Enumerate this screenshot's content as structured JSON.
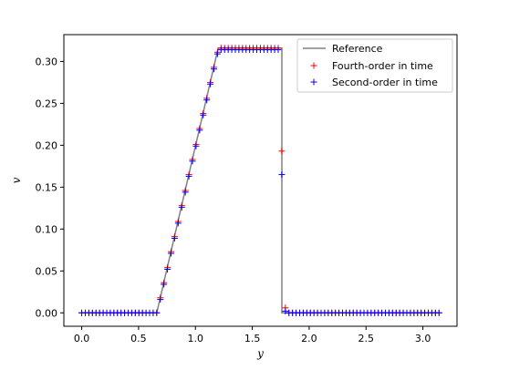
{
  "chart_data": {
    "type": "line",
    "xlabel": "y",
    "ylabel": "v",
    "xlim": [
      -0.157,
      3.3
    ],
    "ylim": [
      -0.016,
      0.332
    ],
    "x_ticks": [
      0.0,
      0.5,
      1.0,
      1.5,
      2.0,
      2.5,
      3.0
    ],
    "x_tick_labels": [
      "0.0",
      "0.5",
      "1.0",
      "1.5",
      "2.0",
      "2.5",
      "3.0"
    ],
    "y_ticks": [
      0.0,
      0.05,
      0.1,
      0.15,
      0.2,
      0.25,
      0.3
    ],
    "y_tick_labels": [
      "0.00",
      "0.05",
      "0.10",
      "0.15",
      "0.20",
      "0.25",
      "0.30"
    ],
    "legend_position": "top-right",
    "colors": {
      "reference": "#808080",
      "fourth": "#ff0000",
      "second": "#0000ff"
    },
    "series": [
      {
        "name": "Reference",
        "style": "line",
        "x": [
          0.0,
          0.66,
          1.2,
          1.76,
          1.76,
          3.14
        ],
        "y": [
          0.0,
          0.0,
          0.316,
          0.316,
          0.0,
          0.0
        ]
      },
      {
        "name": "Fourth-order in time",
        "style": "plus",
        "x": [
          0.0,
          0.0314,
          0.0628,
          0.0942,
          0.1257,
          0.1571,
          0.1885,
          0.2199,
          0.2513,
          0.2827,
          0.3142,
          0.3456,
          0.377,
          0.4084,
          0.4398,
          0.4712,
          0.5027,
          0.5341,
          0.5655,
          0.5969,
          0.6283,
          0.6597,
          0.6912,
          0.7226,
          0.754,
          0.7854,
          0.8168,
          0.8482,
          0.8796,
          0.9111,
          0.9425,
          0.9739,
          1.0053,
          1.0367,
          1.0681,
          1.0996,
          1.131,
          1.1624,
          1.1938,
          1.2252,
          1.2566,
          1.2881,
          1.3195,
          1.3509,
          1.3823,
          1.4137,
          1.4451,
          1.4765,
          1.508,
          1.5394,
          1.5708,
          1.6022,
          1.6336,
          1.665,
          1.6965,
          1.7279,
          1.7593,
          1.7907,
          1.8221,
          1.8535,
          1.885,
          1.9164,
          1.9478,
          1.9792,
          2.0106,
          2.042,
          2.0735,
          2.1049,
          2.1363,
          2.1677,
          2.1991,
          2.2305,
          2.2619,
          2.2934,
          2.3248,
          2.3562,
          2.3876,
          2.419,
          2.4504,
          2.4819,
          2.5133,
          2.5447,
          2.5761,
          2.6075,
          2.6389,
          2.6704,
          2.7018,
          2.7332,
          2.7646,
          2.796,
          2.8274,
          2.8588,
          2.8903,
          2.9217,
          2.9531,
          2.9845,
          3.0159,
          3.0473,
          3.0788,
          3.1102,
          3.1416
        ],
        "y": [
          0,
          0,
          0,
          0,
          0,
          0,
          0,
          0,
          0,
          0,
          0,
          0,
          0,
          0,
          0,
          0,
          0,
          0,
          0,
          0,
          0,
          0.0,
          0.018,
          0.036,
          0.054,
          0.073,
          0.091,
          0.109,
          0.128,
          0.146,
          0.165,
          0.183,
          0.201,
          0.22,
          0.238,
          0.256,
          0.275,
          0.293,
          0.311,
          0.316,
          0.316,
          0.316,
          0.316,
          0.316,
          0.316,
          0.316,
          0.316,
          0.316,
          0.316,
          0.316,
          0.316,
          0.316,
          0.316,
          0.316,
          0.316,
          0.316,
          0.193,
          0.006,
          0,
          0,
          0,
          0,
          0,
          0,
          0,
          0,
          0,
          0,
          0,
          0,
          0,
          0,
          0,
          0,
          0,
          0,
          0,
          0,
          0,
          0,
          0,
          0,
          0,
          0,
          0,
          0,
          0,
          0,
          0,
          0,
          0,
          0,
          0,
          0,
          0,
          0,
          0,
          0,
          0,
          0,
          0
        ],
        "y_note": ""
      },
      {
        "name": "Second-order in time",
        "style": "plus",
        "x": [
          0.0,
          0.0314,
          0.0628,
          0.0942,
          0.1257,
          0.1571,
          0.1885,
          0.2199,
          0.2513,
          0.2827,
          0.3142,
          0.3456,
          0.377,
          0.4084,
          0.4398,
          0.4712,
          0.5027,
          0.5341,
          0.5655,
          0.5969,
          0.6283,
          0.6597,
          0.6912,
          0.7226,
          0.754,
          0.7854,
          0.8168,
          0.8482,
          0.8796,
          0.9111,
          0.9425,
          0.9739,
          1.0053,
          1.0367,
          1.0681,
          1.0996,
          1.131,
          1.1624,
          1.1938,
          1.2252,
          1.2566,
          1.2881,
          1.3195,
          1.3509,
          1.3823,
          1.4137,
          1.4451,
          1.4765,
          1.508,
          1.5394,
          1.5708,
          1.6022,
          1.6336,
          1.665,
          1.6965,
          1.7279,
          1.7593,
          1.7907,
          1.8221,
          1.8535,
          1.885,
          1.9164,
          1.9478,
          1.9792,
          2.0106,
          2.042,
          2.0735,
          2.1049,
          2.1363,
          2.1677,
          2.1991,
          2.2305,
          2.2619,
          2.2934,
          2.3248,
          2.3562,
          2.3876,
          2.419,
          2.4504,
          2.4819,
          2.5133,
          2.5447,
          2.5761,
          2.6075,
          2.6389,
          2.6704,
          2.7018,
          2.7332,
          2.7646,
          2.796,
          2.8274,
          2.8588,
          2.8903,
          2.9217,
          2.9531,
          2.9845,
          3.0159,
          3.0473,
          3.0788,
          3.1102,
          3.1416
        ],
        "y": [
          0,
          0,
          0,
          0,
          0,
          0,
          0,
          0,
          0,
          0,
          0,
          0,
          0,
          0,
          0,
          0,
          0,
          0,
          0,
          0,
          0,
          0.0,
          0.016,
          0.034,
          0.052,
          0.071,
          0.089,
          0.107,
          0.126,
          0.144,
          0.163,
          0.181,
          0.199,
          0.218,
          0.236,
          0.254,
          0.273,
          0.291,
          0.309,
          0.314,
          0.314,
          0.314,
          0.314,
          0.314,
          0.314,
          0.314,
          0.314,
          0.314,
          0.314,
          0.314,
          0.314,
          0.314,
          0.314,
          0.314,
          0.314,
          0.314,
          0.165,
          0.002,
          0,
          0,
          0,
          0,
          0,
          0,
          0,
          0,
          0,
          0,
          0,
          0,
          0,
          0,
          0,
          0,
          0,
          0,
          0,
          0,
          0,
          0,
          0,
          0,
          0,
          0,
          0,
          0,
          0,
          0,
          0,
          0,
          0,
          0,
          0,
          0,
          0,
          0,
          0,
          0,
          0,
          0,
          0
        ]
      }
    ]
  }
}
